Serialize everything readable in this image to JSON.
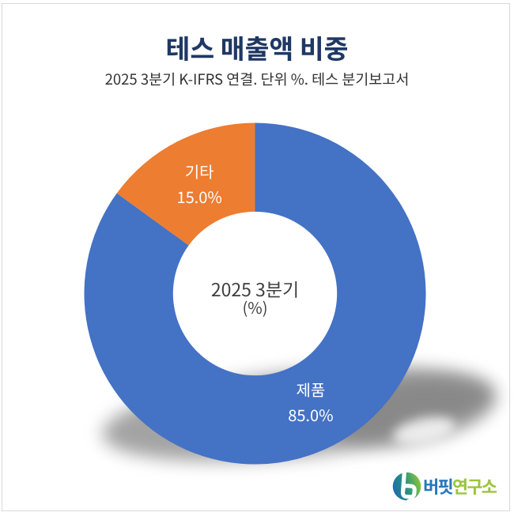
{
  "page": {
    "background": "#ffffff",
    "card_border_color": "#d9d9d9"
  },
  "chart_data": {
    "type": "pie",
    "donut": true,
    "title": "테스 매출액 비중",
    "title_color": "#1f3864",
    "subtitle": "2025 3분기 K-IFRS 연결. 단위 %. 테스 분기보고서",
    "center_label": "2025 3분기",
    "center_sublabel": "(%)",
    "categories": [
      "제품",
      "기타"
    ],
    "values": [
      85.0,
      15.0
    ],
    "value_labels": [
      "85.0%",
      "15.0%"
    ],
    "colors": [
      "#4472c4",
      "#ed7d31"
    ],
    "hole_ratio": 0.48,
    "start_angle_deg": 0,
    "clockwise": true,
    "legend": "none",
    "data_label_color": "#ffffff",
    "shadow": true
  },
  "branding": {
    "name_blue": "버핏",
    "name_green": "연구소",
    "blue_color": "#2878be",
    "green_color": "#9cc43d",
    "logo_gradient_start": "#1f6cb5",
    "logo_gradient_mid": "#2e8f83",
    "logo_gradient_end": "#86c232"
  }
}
